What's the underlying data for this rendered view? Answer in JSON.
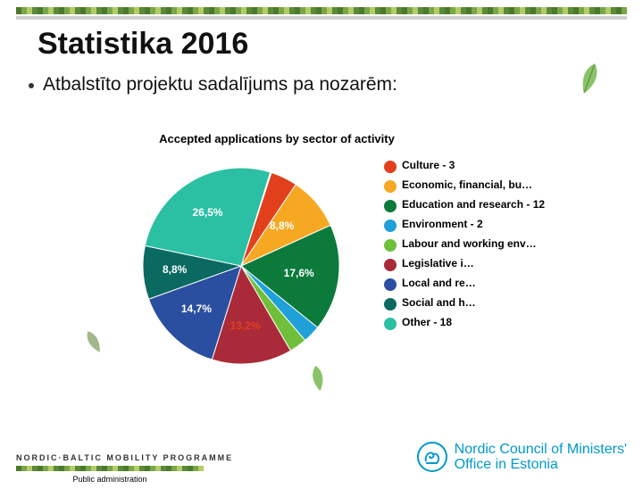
{
  "title": "Statistika 2016",
  "subtitle": "Atbalstīto projektu sadalījums pa nozarēm:",
  "chart": {
    "type": "pie",
    "title": "Accepted applications by sector of activity",
    "background_color": "#ffffff",
    "radius": 110,
    "title_fontsize": 13,
    "label_fontsize": 12,
    "slices": [
      {
        "label": "Culture - 3",
        "color": "#e2401c",
        "pct": 4.4,
        "show_label": false,
        "label_color": "#ffffff"
      },
      {
        "label": "Economic, financial, bu…",
        "color": "#f7a823",
        "pct": 8.8,
        "show_label": true,
        "label_text": "8,8%",
        "label_color": "#ffffff"
      },
      {
        "label": "Education and research - 12",
        "color": "#0b7a3b",
        "pct": 17.6,
        "show_label": true,
        "label_text": "17,6%",
        "label_color": "#ffffff"
      },
      {
        "label": "Environment - 2",
        "color": "#1fa0d8",
        "pct": 2.9,
        "show_label": false,
        "label_color": "#ffffff"
      },
      {
        "label": "Labour and working env…",
        "color": "#6fbf3b",
        "pct": 2.9,
        "show_label": false,
        "label_color": "#ffffff"
      },
      {
        "label": "Legislative i…",
        "color": "#aa2a3a",
        "pct": 13.2,
        "show_label": true,
        "label_text": "13,2%",
        "label_color": "#e2401c"
      },
      {
        "label": "Local and re…",
        "color": "#2a4fa0",
        "pct": 14.7,
        "show_label": true,
        "label_text": "14,7%",
        "label_color": "#ffffff"
      },
      {
        "label": "Social and h…",
        "color": "#0a6a62",
        "pct": 8.8,
        "show_label": true,
        "label_text": "8,8%",
        "label_color": "#ffffff"
      },
      {
        "label": "Other - 18",
        "color": "#2bbfa3",
        "pct": 26.5,
        "show_label": true,
        "label_text": "26,5%",
        "label_color": "#ffffff"
      }
    ],
    "start_angle_deg": -72
  },
  "footer": {
    "programme": "NORDIC·BALTIC MOBILITY PROGRAMME",
    "pa": "Public administration",
    "org_line1": "Nordic Council of Ministers'",
    "org_line2": "Office in Estonia",
    "org_color": "#0099cc"
  }
}
